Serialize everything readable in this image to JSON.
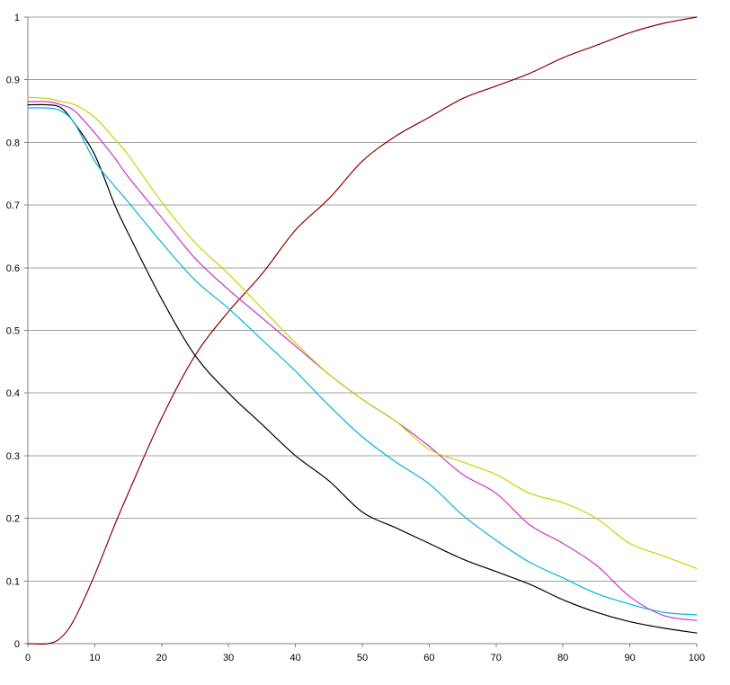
{
  "chart_data": {
    "type": "line",
    "title": "",
    "xlabel": "",
    "ylabel": "",
    "xlim": [
      0,
      100
    ],
    "ylim": [
      0,
      1
    ],
    "x_ticks": [
      0,
      10,
      20,
      30,
      40,
      50,
      60,
      70,
      80,
      90,
      100
    ],
    "x_tick_labels": [
      "0",
      "10",
      "20",
      "30",
      "40",
      "50",
      "60",
      "70",
      "80",
      "90",
      "100"
    ],
    "y_ticks": [
      0,
      0.1,
      0.2,
      0.3,
      0.4,
      0.5,
      0.6,
      0.7,
      0.8,
      0.9,
      1
    ],
    "y_tick_labels": [
      "0",
      "0.1",
      "0.2",
      "0.3",
      "0.4",
      "0.5",
      "0.6",
      "0.7",
      "0.8",
      "0.9",
      "1"
    ],
    "grid": "horizontal",
    "legend": "none",
    "x": [
      0,
      3,
      5,
      7,
      10,
      13,
      15,
      20,
      25,
      30,
      35,
      40,
      45,
      50,
      55,
      60,
      65,
      70,
      75,
      80,
      85,
      90,
      95,
      100
    ],
    "series": [
      {
        "color": "#8b0000",
        "values": [
          0,
          0,
          0.01,
          0.04,
          0.11,
          0.19,
          0.24,
          0.36,
          0.46,
          0.53,
          0.59,
          0.66,
          0.71,
          0.77,
          0.81,
          0.84,
          0.87,
          0.89,
          0.91,
          0.935,
          0.955,
          0.975,
          0.99,
          1.0
        ]
      },
      {
        "color": "#000000",
        "values": [
          0.86,
          0.86,
          0.855,
          0.83,
          0.78,
          0.7,
          0.655,
          0.55,
          0.46,
          0.4,
          0.35,
          0.3,
          0.26,
          0.21,
          0.185,
          0.16,
          0.135,
          0.115,
          0.095,
          0.07,
          0.05,
          0.035,
          0.025,
          0.017
        ]
      },
      {
        "color": "#00b4e0",
        "values": [
          0.855,
          0.855,
          0.85,
          0.83,
          0.77,
          0.73,
          0.705,
          0.64,
          0.58,
          0.535,
          0.485,
          0.435,
          0.38,
          0.33,
          0.29,
          0.255,
          0.205,
          0.165,
          0.13,
          0.105,
          0.08,
          0.063,
          0.05,
          0.046
        ]
      },
      {
        "color": "#cc33cc",
        "values": [
          0.865,
          0.865,
          0.86,
          0.85,
          0.815,
          0.775,
          0.745,
          0.68,
          0.615,
          0.565,
          0.52,
          0.475,
          0.43,
          0.39,
          0.355,
          0.315,
          0.27,
          0.24,
          0.19,
          0.16,
          0.125,
          0.075,
          0.045,
          0.037
        ]
      },
      {
        "color": "#c8d400",
        "values": [
          0.872,
          0.87,
          0.865,
          0.86,
          0.84,
          0.805,
          0.78,
          0.705,
          0.64,
          0.59,
          0.535,
          0.48,
          0.43,
          0.39,
          0.355,
          0.31,
          0.29,
          0.27,
          0.24,
          0.225,
          0.2,
          0.16,
          0.14,
          0.12
        ]
      }
    ]
  }
}
